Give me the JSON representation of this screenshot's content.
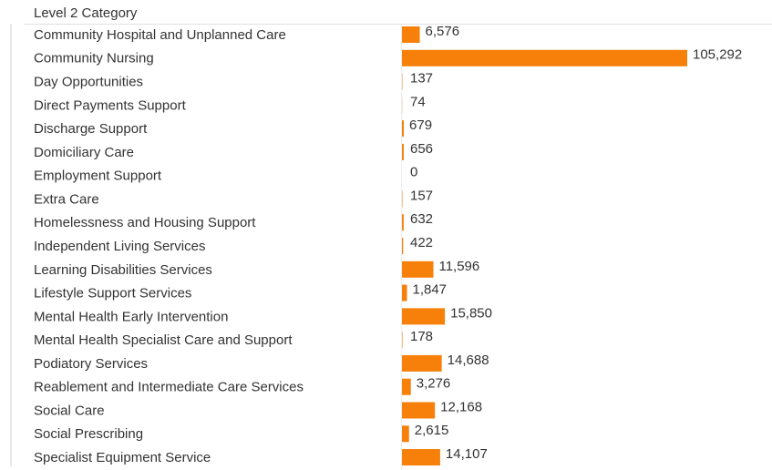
{
  "chart_data": {
    "type": "bar",
    "orientation": "horizontal",
    "column_header": "Level 2 Category",
    "categories": [
      "Community Hospital and Unplanned Care",
      "Community Nursing",
      "Day Opportunities",
      "Direct Payments Support",
      "Discharge Support",
      "Domiciliary Care",
      "Employment Support",
      "Extra Care",
      "Homelessness and Housing Support",
      "Independent Living Services",
      "Learning Disabilities Services",
      "Lifestyle Support Services",
      "Mental Health Early Intervention",
      "Mental Health Specialist Care and Support",
      "Podiatory Services",
      "Reablement and Intermediate Care Services",
      "Social Care",
      "Social Prescribing",
      "Specialist Equipment Service"
    ],
    "values": [
      6576,
      105292,
      137,
      74,
      679,
      656,
      0,
      157,
      632,
      422,
      11596,
      1847,
      15850,
      178,
      14688,
      3276,
      12168,
      2615,
      14107
    ],
    "value_labels": [
      "6,576",
      "105,292",
      "137",
      "74",
      "679",
      "656",
      "0",
      "157",
      "632",
      "422",
      "11,596",
      "1,847",
      "15,850",
      "178",
      "14,688",
      "3,276",
      "12,168",
      "2,615",
      "14,107"
    ],
    "color": "#f7800a"
  }
}
